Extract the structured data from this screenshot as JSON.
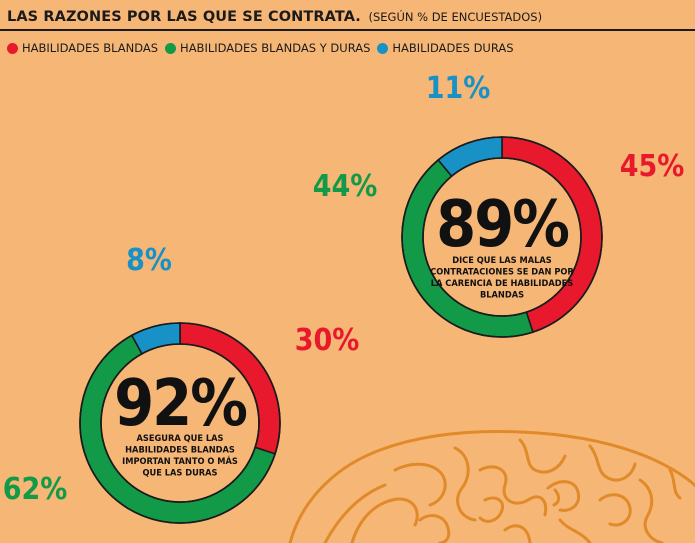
{
  "title": "LAS RAZONES POR LAS QUE SE CONTRATA.",
  "subtitle": "(SEGÚN % DE ENCUESTADOS)",
  "colors": {
    "background": "#F6B676",
    "blandas": "#E8192C",
    "ambas": "#129A48",
    "duras": "#1891C6",
    "text": "#1b1b1b",
    "brain": "#E08A2A"
  },
  "legend": [
    {
      "label": "HABILIDADES BLANDAS",
      "color": "#E8192C"
    },
    {
      "label": "HABILIDADES BLANDAS Y DURAS",
      "color": "#129A48"
    },
    {
      "label": "HABILIDADES DURAS",
      "color": "#1891C6"
    }
  ],
  "chart_data": [
    {
      "type": "pie",
      "center_value": "89%",
      "center_text": [
        "DICE QUE LAS MALAS",
        "CONTRATACIONES SE DAN POR",
        "LA CARENCIA DE HABILIDADES",
        "BLANDAS"
      ],
      "slices": [
        {
          "category": "HABILIDADES BLANDAS",
          "value": 45,
          "label": "45%",
          "color": "#E8192C"
        },
        {
          "category": "HABILIDADES BLANDAS Y DURAS",
          "value": 44,
          "label": "44%",
          "color": "#129A48"
        },
        {
          "category": "HABILIDADES DURAS",
          "value": 11,
          "label": "11%",
          "color": "#1891C6"
        }
      ]
    },
    {
      "type": "pie",
      "center_value": "92%",
      "center_text": [
        "ASEGURA QUE LAS",
        "HABILIDADES BLANDAS",
        "IMPORTAN TANTO O MÁS",
        "QUE LAS DURAS"
      ],
      "slices": [
        {
          "category": "HABILIDADES BLANDAS",
          "value": 30,
          "label": "30%",
          "color": "#E8192C"
        },
        {
          "category": "HABILIDADES BLANDAS Y DURAS",
          "value": 62,
          "label": "62%",
          "color": "#129A48"
        },
        {
          "category": "HABILIDADES DURAS",
          "value": 8,
          "label": "8%",
          "color": "#1891C6"
        }
      ]
    }
  ]
}
